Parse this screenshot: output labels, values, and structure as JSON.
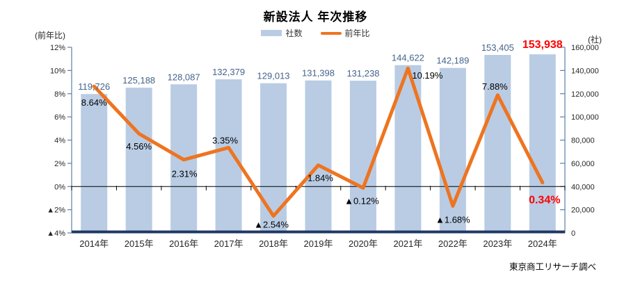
{
  "title": "新設法人 年次推移",
  "legend": {
    "bar": "社数",
    "line": "前年比"
  },
  "left_axis": {
    "unit": "(前年比)",
    "ticks": [
      "12%",
      "10%",
      "8%",
      "6%",
      "4%",
      "2%",
      "0%",
      "▲2%",
      "▲4%"
    ],
    "tick_values": [
      12,
      10,
      8,
      6,
      4,
      2,
      0,
      -2,
      -4
    ]
  },
  "right_axis": {
    "unit": "(社)",
    "ticks": [
      "160,000",
      "140,000",
      "120,000",
      "100,000",
      "80,000",
      "60,000",
      "40,000",
      "20,000",
      "0"
    ],
    "tick_values": [
      160000,
      140000,
      120000,
      100000,
      80000,
      60000,
      40000,
      20000,
      0
    ]
  },
  "footer": "東京商工リサーチ調べ",
  "colors": {
    "bar": "#B9CCE4",
    "line": "#EE7420",
    "bar_label": "#44638C",
    "pct_label": "#000000",
    "highlight": "#FF0000",
    "axis": "#5B7FA6",
    "zero_line": "#000000",
    "baseline": "#1F3864",
    "tick_text": "#262626"
  },
  "chart_data": {
    "type": "combo",
    "categories": [
      "2014年",
      "2015年",
      "2016年",
      "2017年",
      "2018年",
      "2019年",
      "2020年",
      "2021年",
      "2022年",
      "2023年",
      "2024年"
    ],
    "series": [
      {
        "name": "社数",
        "type": "bar",
        "axis": "right",
        "values": [
          119726,
          125188,
          128087,
          132379,
          129013,
          131398,
          131238,
          144622,
          142189,
          153405,
          153938
        ],
        "labels": [
          "119,726",
          "125,188",
          "128,087",
          "132,379",
          "129,013",
          "131,398",
          "131,238",
          "144,622",
          "142,189",
          "153,405",
          "153,938"
        ]
      },
      {
        "name": "前年比",
        "type": "line",
        "axis": "left",
        "values": [
          8.64,
          4.56,
          2.31,
          3.35,
          -2.54,
          1.84,
          -0.12,
          10.19,
          -1.68,
          7.88,
          0.34
        ],
        "labels": [
          "8.64%",
          "4.56%",
          "2.31%",
          "3.35%",
          "▲2.54%",
          "1.84%",
          "▲0.12%",
          "10.19%",
          "▲1.68%",
          "7.88%",
          "0.34%"
        ]
      }
    ],
    "highlight_last": true,
    "left_ylim": [
      -4,
      12
    ],
    "right_ylim": [
      0,
      160000
    ],
    "grid": false,
    "legend_position": "top"
  }
}
